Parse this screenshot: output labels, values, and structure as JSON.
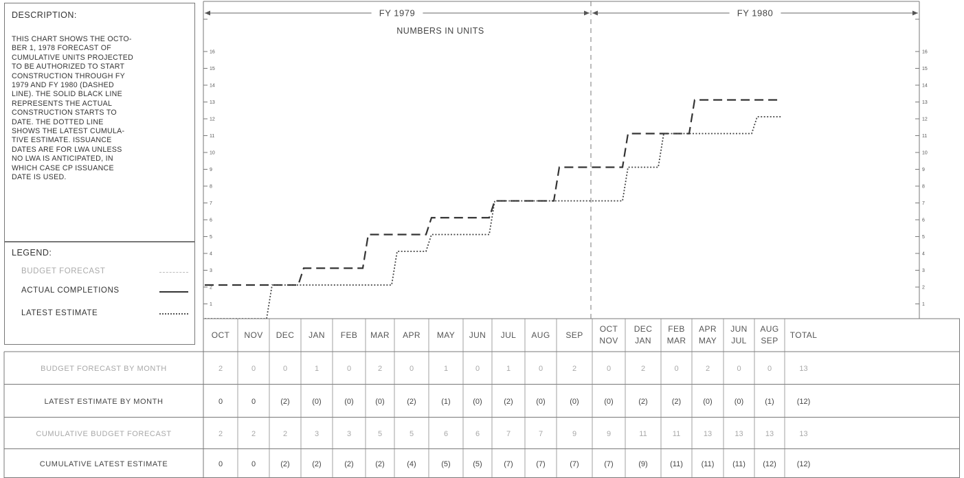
{
  "description": {
    "heading": "DESCRIPTION:",
    "lines": [
      "THIS CHART SHOWS THE OCTO-",
      "BER 1, 1978 FORECAST OF",
      "CUMULATIVE UNITS PROJECTED",
      "TO BE AUTHORIZED TO START",
      "CONSTRUCTION THROUGH FY",
      "1979 AND FY 1980 (DASHED",
      "LINE). THE SOLID BLACK LINE",
      "REPRESENTS THE ACTUAL",
      "CONSTRUCTION STARTS TO",
      "DATE. THE DOTTED LINE",
      "SHOWS THE LATEST CUMULA-",
      "TIVE ESTIMATE. ISSUANCE",
      "DATES ARE FOR LWA UNLESS",
      "NO LWA IS ANTICIPATED, IN",
      "WHICH CASE CP ISSUANCE",
      "DATE IS USED."
    ]
  },
  "legend": {
    "heading": "LEGEND:",
    "budget": "BUDGET FORECAST",
    "actual": "ACTUAL COMPLETIONS",
    "latest": "LATEST ESTIMATE"
  },
  "chart_data": {
    "type": "line",
    "title": "NUMBERS IN UNITS",
    "fiscal_years": [
      "FY 1979",
      "FY 1980"
    ],
    "categories": [
      "OCT",
      "NOV",
      "DEC",
      "JAN",
      "FEB",
      "MAR",
      "APR",
      "MAY",
      "JUN",
      "JUL",
      "AUG",
      "SEP",
      "OCT NOV",
      "DEC JAN",
      "FEB MAR",
      "APR MAY",
      "JUN JUL",
      "AUG SEP"
    ],
    "y_ticks": [
      "1",
      "2",
      "3",
      "4",
      "5",
      "6",
      "7",
      "8",
      "9",
      "10",
      "11",
      "12",
      "13",
      "14",
      "15",
      "16"
    ],
    "ylim": [
      0,
      17
    ],
    "series": [
      {
        "style": "dashed",
        "values": [
          2,
          2,
          2,
          3,
          3,
          5,
          5,
          6,
          6,
          7,
          7,
          9,
          9,
          11,
          11,
          13,
          13,
          13
        ]
      },
      {
        "style": "dotted",
        "values": [
          0,
          0,
          2,
          2,
          2,
          2,
          4,
          5,
          5,
          7,
          7,
          7,
          7,
          9,
          11,
          11,
          11,
          12
        ]
      }
    ]
  },
  "table": {
    "columns": [
      "OCT",
      "NOV",
      "DEC",
      "JAN",
      "FEB",
      "MAR",
      "APR",
      "MAY",
      "JUN",
      "JUL",
      "AUG",
      "SEP",
      "OCT NOV",
      "DEC JAN",
      "FEB MAR",
      "APR MAY",
      "JUN JUL",
      "AUG SEP",
      "TOTAL"
    ],
    "rows": [
      {
        "label": "BUDGET FORECAST BY MONTH",
        "faded": true,
        "values": [
          "2",
          "0",
          "0",
          "1",
          "0",
          "2",
          "0",
          "1",
          "0",
          "1",
          "0",
          "2",
          "0",
          "2",
          "0",
          "2",
          "0",
          "0",
          "13"
        ]
      },
      {
        "label": "LATEST ESTIMATE BY MONTH",
        "faded": false,
        "values": [
          "0",
          "0",
          "(2)",
          "(0)",
          "(0)",
          "(0)",
          "(2)",
          "(1)",
          "(0)",
          "(2)",
          "(0)",
          "(0)",
          "(0)",
          "(2)",
          "(2)",
          "(0)",
          "(0)",
          "(1)",
          "(12)"
        ]
      },
      {
        "label": "CUMULATIVE BUDGET FORECAST",
        "faded": true,
        "values": [
          "2",
          "2",
          "2",
          "3",
          "3",
          "5",
          "5",
          "6",
          "6",
          "7",
          "7",
          "9",
          "9",
          "11",
          "11",
          "13",
          "13",
          "13",
          "13"
        ]
      },
      {
        "label": "CUMULATIVE LATEST ESTIMATE",
        "faded": false,
        "values": [
          "0",
          "0",
          "(2)",
          "(2)",
          "(2)",
          "(2)",
          "(4)",
          "(5)",
          "(5)",
          "(7)",
          "(7)",
          "(7)",
          "(7)",
          "(9)",
          "(11)",
          "(11)",
          "(11)",
          "(12)",
          "(12)"
        ]
      }
    ]
  },
  "colors": {
    "ink": "#333333",
    "faded": "#a8a8a8",
    "grid": "#777777"
  }
}
